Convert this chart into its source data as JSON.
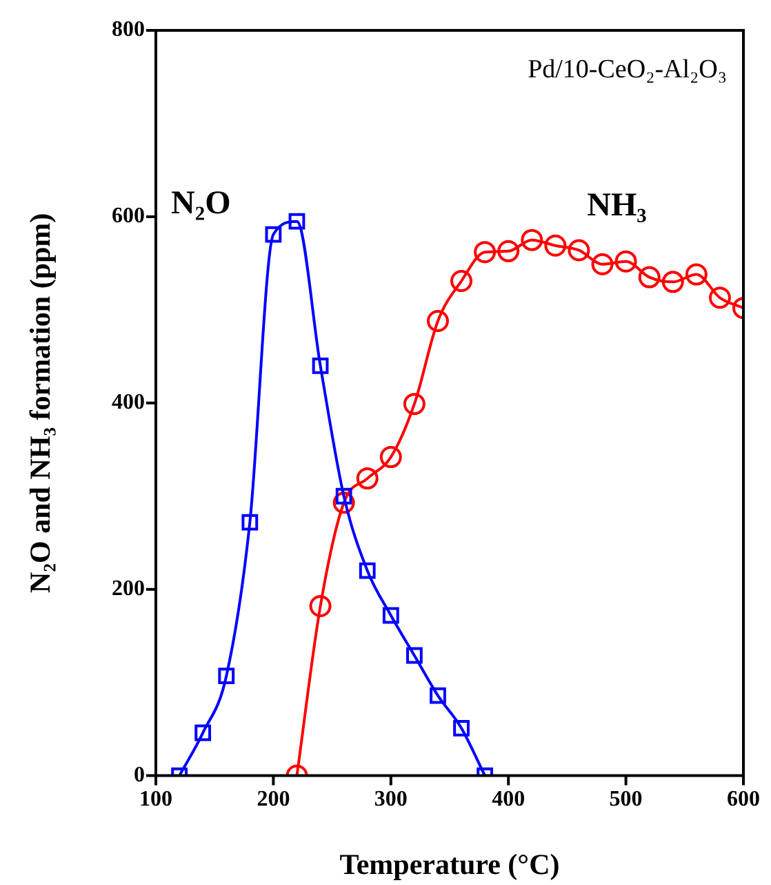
{
  "chart_data": {
    "type": "line",
    "xlabel": "Temperature (°C)",
    "ylabel": "N₂O and NH₃ formation (ppm)",
    "annotations": [
      "Pd/10-CeO₂-Al₂O₃"
    ],
    "xlim": [
      100,
      600
    ],
    "xticks": [
      100,
      200,
      300,
      400,
      500,
      600
    ],
    "ylim": [
      0,
      800
    ],
    "yticks": [
      0,
      200,
      400,
      600,
      800
    ],
    "grid": false,
    "legend": false,
    "series": [
      {
        "name": "N₂O",
        "color": "#0000ff",
        "marker": "square",
        "x": [
          120,
          140,
          160,
          180,
          200,
          220,
          240,
          260,
          280,
          300,
          320,
          340,
          360,
          380
        ],
        "values": [
          0,
          46,
          107,
          272,
          581,
          595,
          440,
          300,
          220,
          172,
          129,
          86,
          51,
          0
        ]
      },
      {
        "name": "NH₃",
        "color": "#ff0000",
        "marker": "circle",
        "x": [
          220,
          240,
          260,
          280,
          300,
          320,
          340,
          360,
          380,
          400,
          420,
          440,
          460,
          480,
          500,
          520,
          540,
          560,
          580,
          600
        ],
        "values": [
          0,
          182,
          293,
          319,
          342,
          399,
          488,
          531,
          562,
          563,
          575,
          569,
          564,
          549,
          552,
          535,
          530,
          538,
          513,
          502
        ]
      }
    ]
  }
}
